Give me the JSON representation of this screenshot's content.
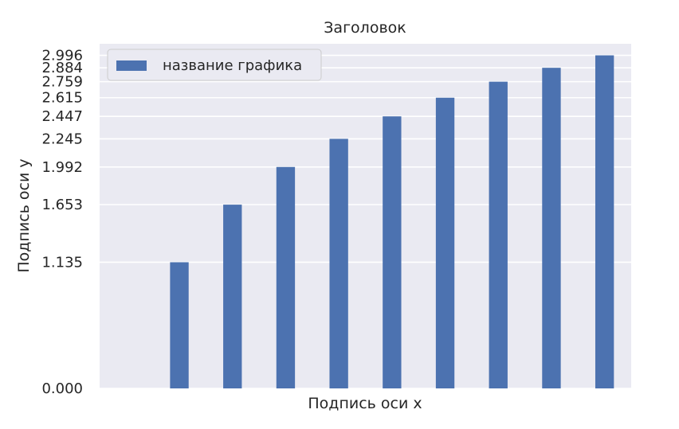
{
  "chart_data": {
    "type": "bar",
    "title": "Заголовок",
    "xlabel": "Подпись оси x",
    "ylabel": "Подпись оси y",
    "x": [
      0,
      1,
      2,
      3,
      4,
      5,
      6,
      7,
      8,
      9
    ],
    "series": [
      {
        "name": "название графика",
        "color": "#4c72b0",
        "values": [
          0.0,
          1.135,
          1.653,
          1.992,
          2.245,
          2.447,
          2.615,
          2.759,
          2.884,
          2.996
        ]
      }
    ],
    "yticks": [
      0.0,
      1.135,
      1.653,
      1.992,
      2.245,
      2.447,
      2.615,
      2.759,
      2.884,
      2.996
    ],
    "ytick_labels": [
      "0.000",
      "1.135",
      "1.653",
      "1.992",
      "2.245",
      "2.447",
      "2.615",
      "2.759",
      "2.884",
      "2.996"
    ],
    "xticks": [],
    "ylim": [
      0,
      3.1
    ],
    "xlim": [
      -0.5,
      9.5
    ],
    "grid": true,
    "legend_position": "top-left",
    "background_color": "#eaeaf2",
    "grid_color": "#ffffff"
  }
}
